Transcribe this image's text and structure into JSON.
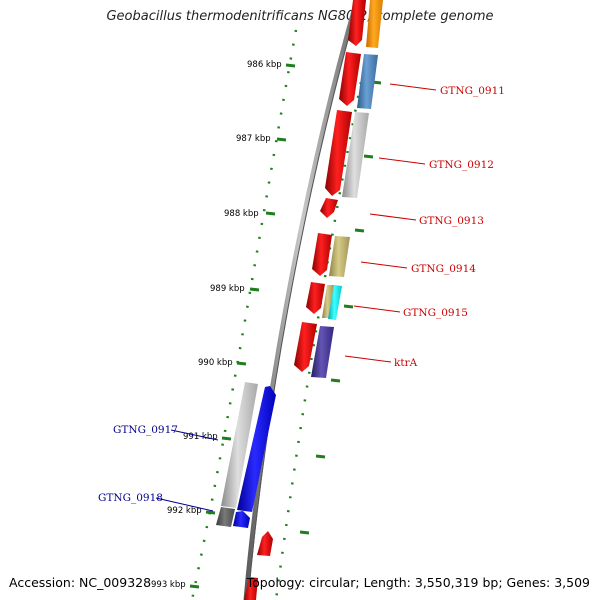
{
  "title": "Geobacillus thermodenitrificans NG80-2, complete genome",
  "footer": {
    "accession": "Accession: NC_009328",
    "summary": "Topology: circular; Length: 3,550,319 bp; Genes: 3,509"
  },
  "colors": {
    "forward_strand": "#e8141c",
    "reverse_strand": "#1515f0",
    "label_forward": "#cc0000",
    "label_reverse": "#00008b",
    "ruler": "#1f7f1f",
    "backbone": "#8a8a8a"
  },
  "ticks": [
    {
      "label": "986 kbp",
      "kbp": 986
    },
    {
      "label": "987 kbp",
      "kbp": 987
    },
    {
      "label": "988 kbp",
      "kbp": 988
    },
    {
      "label": "989 kbp",
      "kbp": 989
    },
    {
      "label": "990 kbp",
      "kbp": 990
    },
    {
      "label": "991 kbp",
      "kbp": 991
    },
    {
      "label": "992 kbp",
      "kbp": 992
    },
    {
      "label": "993 kbp",
      "kbp": 993
    }
  ],
  "gene_labels": [
    {
      "name": "GTNG_0911",
      "strand": "forward"
    },
    {
      "name": "GTNG_0912",
      "strand": "forward"
    },
    {
      "name": "GTNG_0913",
      "strand": "forward"
    },
    {
      "name": "GTNG_0914",
      "strand": "forward"
    },
    {
      "name": "GTNG_0915",
      "strand": "forward"
    },
    {
      "name": "ktrA",
      "strand": "forward"
    },
    {
      "name": "GTNG_0917",
      "strand": "reverse"
    },
    {
      "name": "GTNG_0918",
      "strand": "reverse"
    }
  ]
}
